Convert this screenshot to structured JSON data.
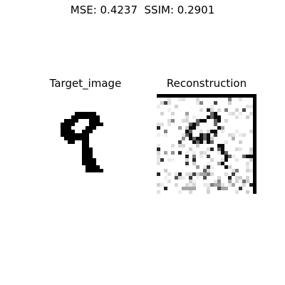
{
  "header": {
    "metrics": "MSE: 0.4237  SSIM: 0.2901"
  },
  "panels": {
    "target_title": "Target_image",
    "reconstruction_title": "Reconstruction"
  }
}
